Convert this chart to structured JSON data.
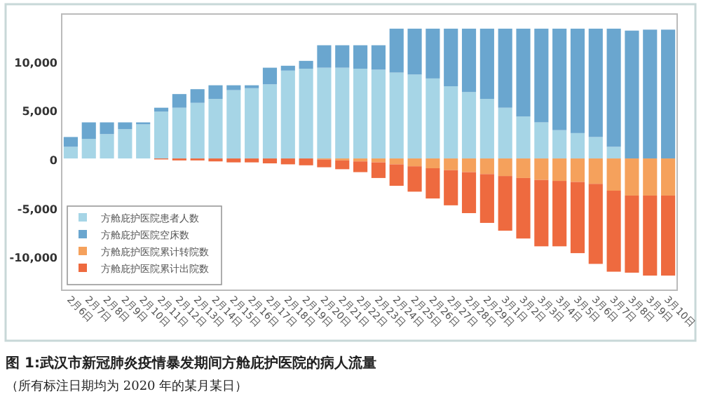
{
  "chart_data": {
    "type": "bar",
    "stacked": true,
    "categories": [
      "2月6日",
      "2月7日",
      "2月8日",
      "2月9日",
      "2月10日",
      "2月11日",
      "2月12日",
      "2月13日",
      "2月14日",
      "2月15日",
      "2月16日",
      "2月17日",
      "2月18日",
      "2月19日",
      "2月20日",
      "2月21日",
      "2月22日",
      "2月23日",
      "2月24日",
      "2月25日",
      "2月26日",
      "2月27日",
      "2月28日",
      "2月29日",
      "3月1日",
      "3月2日",
      "3月3日",
      "3月4日",
      "3月5日",
      "3月6日",
      "3月7日",
      "3月8日",
      "3月9日",
      "3月10日"
    ],
    "series": [
      {
        "name": "方舱庇护医院患者人数",
        "color": "#a6d5e6",
        "values": [
          1200,
          2000,
          2500,
          3000,
          3500,
          4800,
          5200,
          5700,
          6100,
          7000,
          7200,
          7600,
          9000,
          9200,
          9300,
          9300,
          9200,
          9100,
          8800,
          8600,
          8200,
          7400,
          6800,
          6100,
          5200,
          4300,
          3700,
          2900,
          2600,
          2200,
          1200,
          null,
          null,
          null
        ]
      },
      {
        "name": "方舱庇护医院空床数",
        "color": "#6aa6cf",
        "values": [
          1000,
          1700,
          1200,
          700,
          200,
          400,
          1400,
          1400,
          1400,
          500,
          300,
          1700,
          500,
          800,
          2300,
          2300,
          2400,
          2500,
          4500,
          4700,
          5100,
          5900,
          6500,
          7200,
          8100,
          9000,
          9600,
          10400,
          10700,
          11100,
          12100,
          13100,
          13200,
          13200
        ]
      },
      {
        "name": "方舱庇护医院累计转院数",
        "color": "#f5a15c",
        "values": [
          0,
          0,
          0,
          0,
          0,
          0,
          0,
          0,
          0,
          0,
          0,
          0,
          0,
          0,
          -100,
          -200,
          -300,
          -400,
          -600,
          -800,
          -1000,
          -1200,
          -1400,
          -1600,
          -1800,
          -2000,
          -2200,
          -2300,
          -2400,
          -2600,
          -3300,
          -3800,
          -3800,
          -3800
        ]
      },
      {
        "name": "方舱庇护医院累计出院数",
        "color": "#ee6a3f",
        "values": [
          0,
          0,
          0,
          0,
          0,
          -100,
          -200,
          -200,
          -300,
          -400,
          -400,
          -500,
          -600,
          -700,
          -800,
          -900,
          -1100,
          -1600,
          -2200,
          -2600,
          -3100,
          -3600,
          -4200,
          -5000,
          -5600,
          -6200,
          -6800,
          -6700,
          -7300,
          -8200,
          -8300,
          -7900,
          -8200,
          -8200
        ]
      }
    ],
    "ylim": [
      -13500,
      14800
    ],
    "yticks": [
      {
        "value": -10000,
        "label": "-10,000"
      },
      {
        "value": -5000,
        "label": "-5,000"
      },
      0,
      {
        "value": 5000,
        "label": "5,000"
      },
      {
        "value": 10000,
        "label": "10,000"
      }
    ],
    "grid": false,
    "legend": "bottom left",
    "annotations": [
      "图 1:武汉市新冠肺炎疫情暴发期间方舱庇护医院的病人流量",
      "（所有标注日期均为 2020 年的某月某日）"
    ]
  }
}
